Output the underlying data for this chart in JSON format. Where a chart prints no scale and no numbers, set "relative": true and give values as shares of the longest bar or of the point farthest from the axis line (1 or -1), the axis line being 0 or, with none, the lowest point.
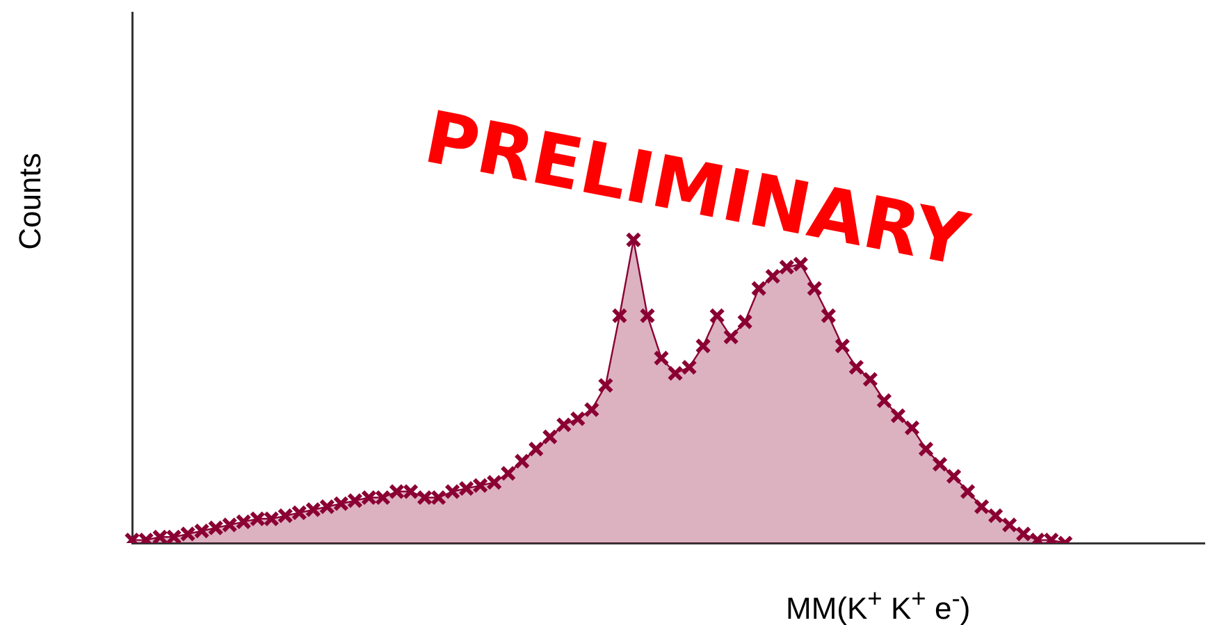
{
  "chart_data": {
    "type": "area",
    "relative": true,
    "xlabel": "MM(K$^{+}$ K$^{+}$ e$^{-}$)",
    "ylabel": "Counts",
    "marker": "cross",
    "grid": false,
    "legend": false,
    "annotations": [
      "PRELIMINARY"
    ],
    "categories": [
      null,
      null,
      null,
      null,
      null,
      null,
      null,
      null,
      null,
      null,
      null,
      null,
      null,
      null,
      null,
      null,
      null,
      null,
      null,
      null,
      null,
      null,
      null,
      null,
      null,
      null,
      null,
      null,
      null,
      null,
      null,
      null,
      null,
      null,
      null,
      null,
      null,
      null,
      null,
      null,
      null,
      null,
      null,
      null,
      null,
      null,
      null,
      null,
      null,
      null,
      null,
      null,
      null,
      null,
      null,
      null,
      null,
      null,
      null,
      null,
      null,
      null,
      null,
      null,
      null,
      null,
      null,
      null,
      null,
      null,
      null,
      null,
      null,
      null,
      null,
      null,
      null,
      null
    ],
    "series": [
      {
        "color": "#8b0033",
        "values": [
          0.01,
          0.01,
          0.02,
          0.02,
          0.03,
          0.04,
          0.05,
          0.06,
          0.07,
          0.08,
          0.08,
          0.09,
          0.1,
          0.11,
          0.12,
          0.13,
          0.14,
          0.15,
          0.15,
          0.17,
          0.17,
          0.15,
          0.15,
          0.17,
          0.18,
          0.19,
          0.2,
          0.23,
          0.27,
          0.31,
          0.35,
          0.39,
          0.41,
          0.44,
          0.52,
          0.75,
          1,
          0.75,
          0.61,
          0.56,
          0.58,
          0.65,
          0.75,
          0.68,
          0.73,
          0.84,
          0.88,
          0.91,
          0.92,
          0.84,
          0.75,
          0.65,
          0.58,
          0.54,
          0.47,
          0.42,
          0.38,
          0.31,
          0.26,
          0.22,
          0.17,
          0.12,
          0.09,
          0.06,
          0.03,
          0.01,
          0.01,
          0,
          null,
          null,
          null,
          null,
          null,
          null,
          null,
          null,
          null,
          null
        ]
      }
    ]
  }
}
